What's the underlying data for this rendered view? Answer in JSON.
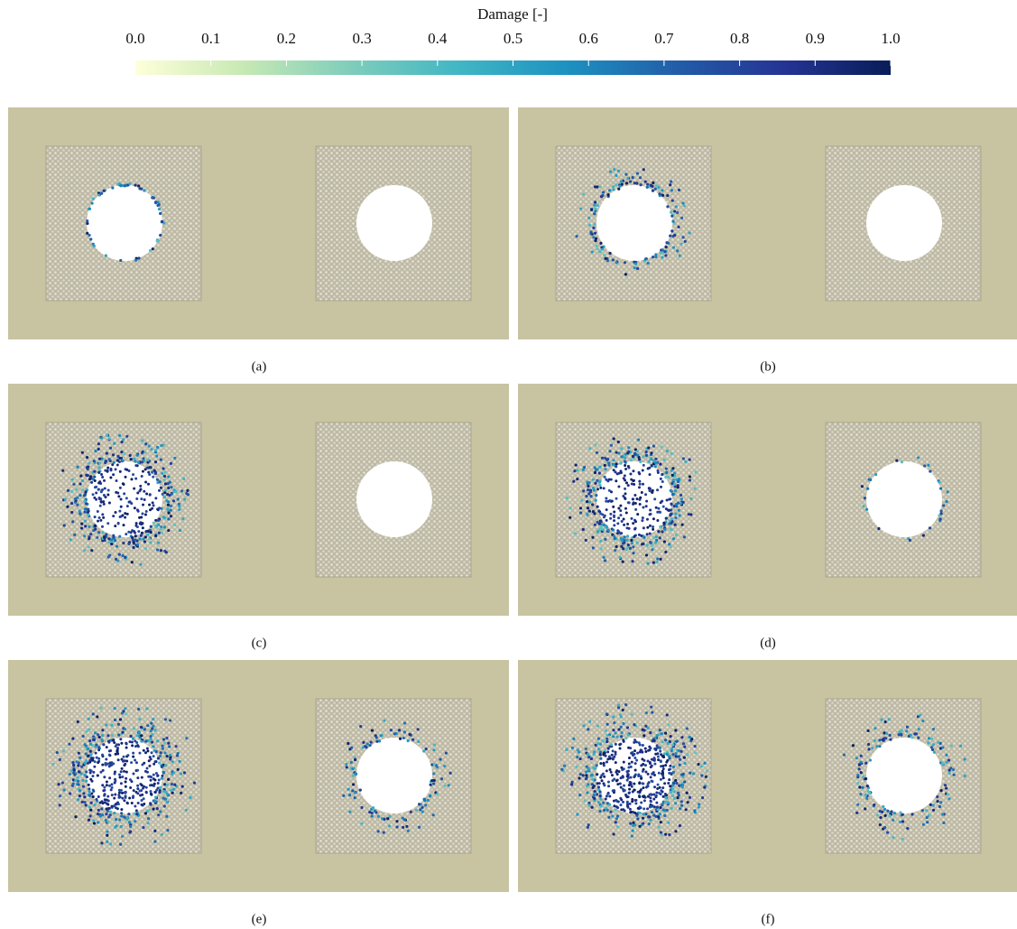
{
  "colorbar": {
    "title": "Damage [-]",
    "lim": [
      0,
      1
    ],
    "ticks": [
      {
        "value": 0,
        "label": "0.0"
      },
      0.1,
      0.2,
      0.3,
      0.4,
      0.5,
      0.6,
      0.7,
      0.8,
      0.9,
      {
        "value": 1,
        "label": "1.0"
      }
    ],
    "colors": [
      "#ffffd9",
      "#c7e9b4",
      "#7fcdbb",
      "#41b6c4",
      "#1d91c0",
      "#225ea8",
      "#253494",
      "#081d58"
    ]
  },
  "panels": [
    {
      "label": "(a)"
    },
    {
      "label": "(b)"
    },
    {
      "label": "(c)"
    },
    {
      "label": "(d)"
    },
    {
      "label": "(e)"
    },
    {
      "label": "(f)"
    }
  ]
}
